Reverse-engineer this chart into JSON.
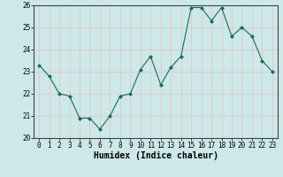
{
  "x": [
    0,
    1,
    2,
    3,
    4,
    5,
    6,
    7,
    8,
    9,
    10,
    11,
    12,
    13,
    14,
    15,
    16,
    17,
    18,
    19,
    20,
    21,
    22,
    23
  ],
  "y": [
    23.3,
    22.8,
    22.0,
    21.9,
    20.9,
    20.9,
    20.4,
    21.0,
    21.9,
    22.0,
    23.1,
    23.7,
    22.4,
    23.2,
    23.7,
    25.9,
    25.9,
    25.3,
    25.9,
    24.6,
    25.0,
    24.6,
    23.5,
    23.0
  ],
  "xlabel": "Humidex (Indice chaleur)",
  "ylim": [
    20,
    26
  ],
  "xlim": [
    -0.5,
    23.5
  ],
  "yticks": [
    20,
    21,
    22,
    23,
    24,
    25,
    26
  ],
  "xticks": [
    0,
    1,
    2,
    3,
    4,
    5,
    6,
    7,
    8,
    9,
    10,
    11,
    12,
    13,
    14,
    15,
    16,
    17,
    18,
    19,
    20,
    21,
    22,
    23
  ],
  "line_color": "#1a6b5a",
  "marker_color": "#1a6b5a",
  "bg_color": "#cce8e8",
  "grid_color": "#e8c0c0",
  "tick_label_fontsize": 5.5,
  "xlabel_fontsize": 7.0
}
